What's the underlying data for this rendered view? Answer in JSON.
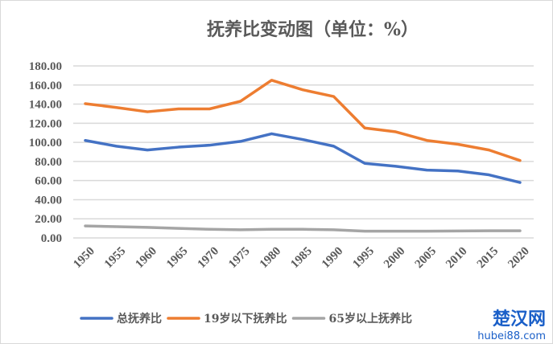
{
  "chart_data": {
    "type": "line",
    "title": "抚养比变动图（单位：%）",
    "x": [
      1950,
      1955,
      1960,
      1965,
      1970,
      1975,
      1980,
      1985,
      1990,
      1995,
      2000,
      2005,
      2010,
      2015,
      2020
    ],
    "ylim": [
      0,
      180
    ],
    "yticks": [
      "0.00",
      "20.00",
      "40.00",
      "60.00",
      "80.00",
      "100.00",
      "120.00",
      "140.00",
      "160.00",
      "180.00"
    ],
    "grid": true,
    "legend": "bottom",
    "series": [
      {
        "name": "总抚养比",
        "color": "#4472c4",
        "values": [
          102,
          96,
          92,
          95,
          97,
          101,
          109,
          103,
          96,
          78,
          75,
          71,
          70,
          66,
          58
        ]
      },
      {
        "name": "19岁以下抚养比",
        "color": "#ed7d31",
        "values": [
          140.5,
          136.5,
          132,
          135,
          135,
          143,
          165,
          155,
          148,
          115,
          111,
          102,
          98,
          92,
          81
        ]
      },
      {
        "name": "65岁以上抚养比",
        "color": "#a5a5a5",
        "values": [
          12.5,
          11.8,
          11,
          10,
          9,
          8.5,
          9,
          9,
          8.5,
          7,
          7,
          7,
          7.3,
          7.5,
          7.5
        ]
      }
    ]
  },
  "watermark": {
    "cn": "楚汉网",
    "en": "hubei88.com"
  }
}
